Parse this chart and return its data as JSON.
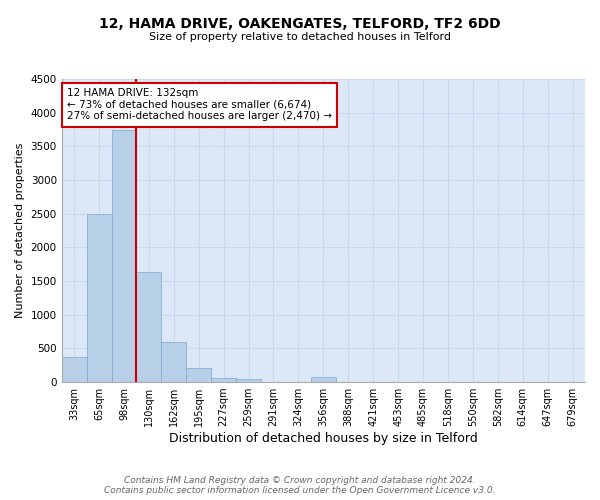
{
  "title": "12, HAMA DRIVE, OAKENGATES, TELFORD, TF2 6DD",
  "subtitle": "Size of property relative to detached houses in Telford",
  "xlabel": "Distribution of detached houses by size in Telford",
  "ylabel": "Number of detached properties",
  "bin_labels": [
    "33sqm",
    "65sqm",
    "98sqm",
    "130sqm",
    "162sqm",
    "195sqm",
    "227sqm",
    "259sqm",
    "291sqm",
    "324sqm",
    "356sqm",
    "388sqm",
    "421sqm",
    "453sqm",
    "485sqm",
    "518sqm",
    "550sqm",
    "582sqm",
    "614sqm",
    "647sqm",
    "679sqm"
  ],
  "bar_heights": [
    370,
    2500,
    3750,
    1640,
    590,
    210,
    60,
    50,
    0,
    0,
    80,
    0,
    0,
    0,
    0,
    0,
    0,
    0,
    0,
    0,
    0
  ],
  "bar_color": "#b8cfe8",
  "bar_edge_color": "#7aaad0",
  "vline_bin_index": 3,
  "property_sqm": 132,
  "annotation_text": "12 HAMA DRIVE: 132sqm\n← 73% of detached houses are smaller (6,674)\n27% of semi-detached houses are larger (2,470) →",
  "annotation_box_color": "#ffffff",
  "annotation_box_edge_color": "#cc0000",
  "vline_color": "#cc0000",
  "ylim": [
    0,
    4500
  ],
  "yticks": [
    0,
    500,
    1000,
    1500,
    2000,
    2500,
    3000,
    3500,
    4000,
    4500
  ],
  "grid_color": "#c8d8ee",
  "footer": "Contains HM Land Registry data © Crown copyright and database right 2024.\nContains public sector information licensed under the Open Government Licence v3.0.",
  "bg_color": "#dce8f8",
  "fig_width": 6.0,
  "fig_height": 5.0,
  "title_fontsize": 10,
  "subtitle_fontsize": 8,
  "xlabel_fontsize": 9,
  "ylabel_fontsize": 8,
  "tick_fontsize": 7,
  "footer_fontsize": 6.5,
  "ann_fontsize": 7.5
}
